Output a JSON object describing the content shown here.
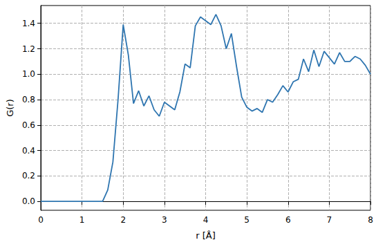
{
  "chart_data": {
    "type": "line",
    "x_label": "r [Å]",
    "y_label": "G(r)",
    "color": "#2e75b0",
    "grid": true,
    "x": [
      0,
      0.125,
      0.25,
      0.375,
      0.5,
      0.625,
      0.75,
      0.875,
      1.0,
      1.125,
      1.25,
      1.375,
      1.5,
      1.625,
      1.75,
      1.875,
      2.0,
      2.125,
      2.25,
      2.375,
      2.5,
      2.625,
      2.75,
      2.875,
      3.0,
      3.125,
      3.25,
      3.375,
      3.5,
      3.625,
      3.75,
      3.875,
      4.0,
      4.125,
      4.25,
      4.375,
      4.5,
      4.625,
      4.75,
      4.875,
      5.0,
      5.125,
      5.25,
      5.375,
      5.5,
      5.625,
      5.75,
      5.875,
      6.0,
      6.125,
      6.25,
      6.375,
      6.5,
      6.625,
      6.75,
      6.875,
      7.0,
      7.125,
      7.25,
      7.375,
      7.5,
      7.625,
      7.75,
      7.875,
      8.0
    ],
    "values": [
      0,
      0,
      0,
      0,
      0,
      0,
      0,
      0,
      0,
      0,
      0,
      0,
      0,
      0.09,
      0.31,
      0.8,
      1.39,
      1.15,
      0.77,
      0.87,
      0.75,
      0.83,
      0.72,
      0.67,
      0.78,
      0.75,
      0.72,
      0.86,
      1.08,
      1.05,
      1.38,
      1.45,
      1.42,
      1.39,
      1.47,
      1.38,
      1.2,
      1.32,
      1.06,
      0.82,
      0.74,
      0.71,
      0.73,
      0.7,
      0.8,
      0.78,
      0.84,
      0.91,
      0.86,
      0.94,
      0.96,
      1.12,
      1.02,
      1.19,
      1.06,
      1.18,
      1.13,
      1.08,
      1.17,
      1.1,
      1.1,
      1.14,
      1.12,
      1.07,
      1.0
    ],
    "xlim": [
      0,
      8
    ],
    "xticks": [
      0,
      1,
      2,
      3,
      4,
      5,
      6,
      7,
      8
    ],
    "ylim": [
      -0.07,
      1.54
    ],
    "yticks": [
      {
        "value": 0,
        "label": "0.0"
      },
      {
        "value": 0.2,
        "label": "0.2"
      },
      {
        "value": 0.4,
        "label": "0.4"
      },
      {
        "value": 0.6,
        "label": "0.6"
      },
      {
        "value": 0.8,
        "label": "0.8"
      },
      {
        "value": 1.0,
        "label": "1.0"
      },
      {
        "value": 1.2,
        "label": "1.2"
      },
      {
        "value": 1.4,
        "label": "1.4"
      }
    ]
  }
}
